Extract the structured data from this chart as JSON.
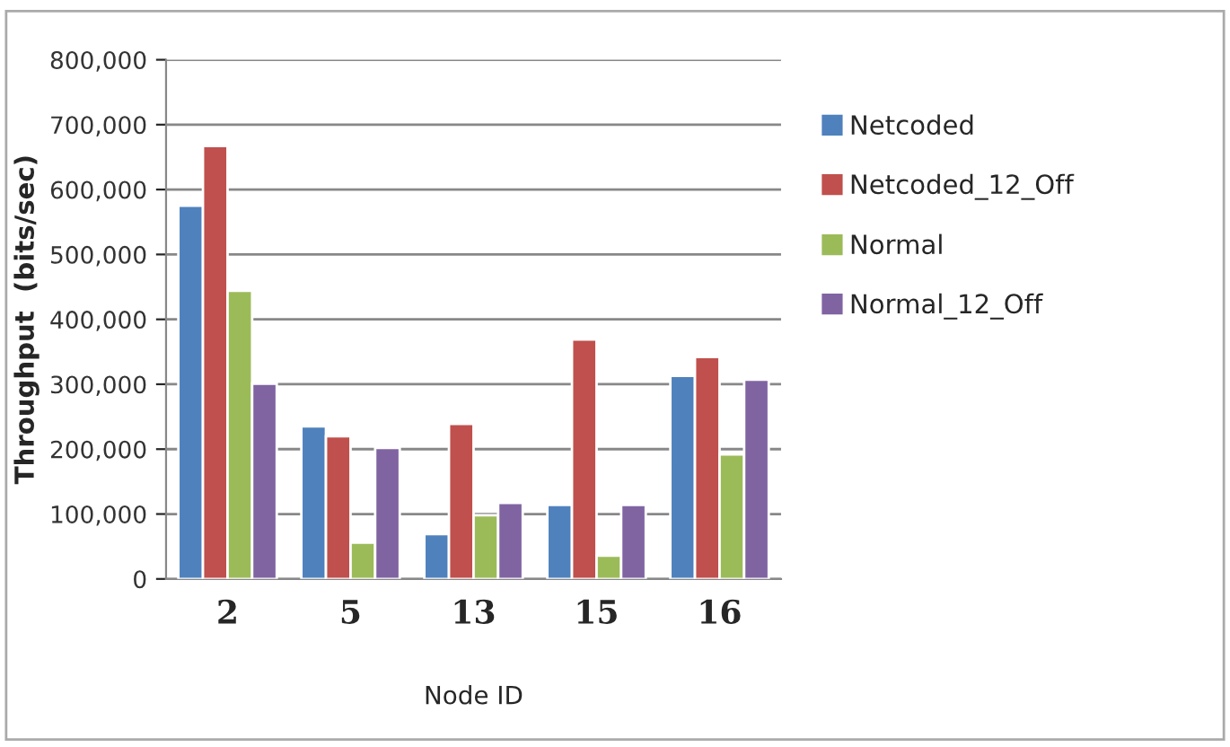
{
  "chart_data": {
    "type": "bar",
    "xlabel": "Node ID",
    "ylabel": "Throughput  (bits/sec)",
    "categories": [
      "2",
      "5",
      "13",
      "15",
      "16"
    ],
    "series": [
      {
        "name": "Netcoded",
        "color": "#4f81bd",
        "values": [
          575000,
          235000,
          69000,
          114000,
          313000
        ]
      },
      {
        "name": "Netcoded_12_Off",
        "color": "#c0504d",
        "values": [
          667000,
          220000,
          239000,
          369000,
          342000
        ]
      },
      {
        "name": "Normal",
        "color": "#9bbb59",
        "values": [
          444000,
          56000,
          98000,
          36000,
          192000
        ]
      },
      {
        "name": "Normal_12_Off",
        "color": "#8064a2",
        "values": [
          301000,
          202000,
          117000,
          114000,
          307000
        ]
      }
    ],
    "ylim": [
      0,
      800000
    ],
    "yticks": [
      {
        "value": 0,
        "label": "0"
      },
      {
        "value": 100000,
        "label": "100,000"
      },
      {
        "value": 200000,
        "label": "200,000"
      },
      {
        "value": 300000,
        "label": "300,000"
      },
      {
        "value": 400000,
        "label": "400,000"
      },
      {
        "value": 500000,
        "label": "500,000"
      },
      {
        "value": 600000,
        "label": "600,000"
      },
      {
        "value": 700000,
        "label": "700,000"
      },
      {
        "value": 800000,
        "label": "800,000"
      }
    ],
    "grid": "y",
    "legend": "right"
  }
}
